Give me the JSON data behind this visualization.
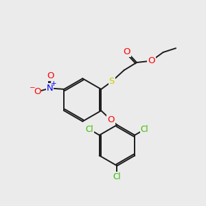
{
  "background_color": "#ebebeb",
  "bond_color": "#1a1a1a",
  "bond_width": 1.4,
  "atom_colors": {
    "O": "#ff0000",
    "S": "#cccc00",
    "N": "#0000ff",
    "Cl": "#33bb00",
    "C": "#1a1a1a"
  },
  "font_size": 8.5
}
